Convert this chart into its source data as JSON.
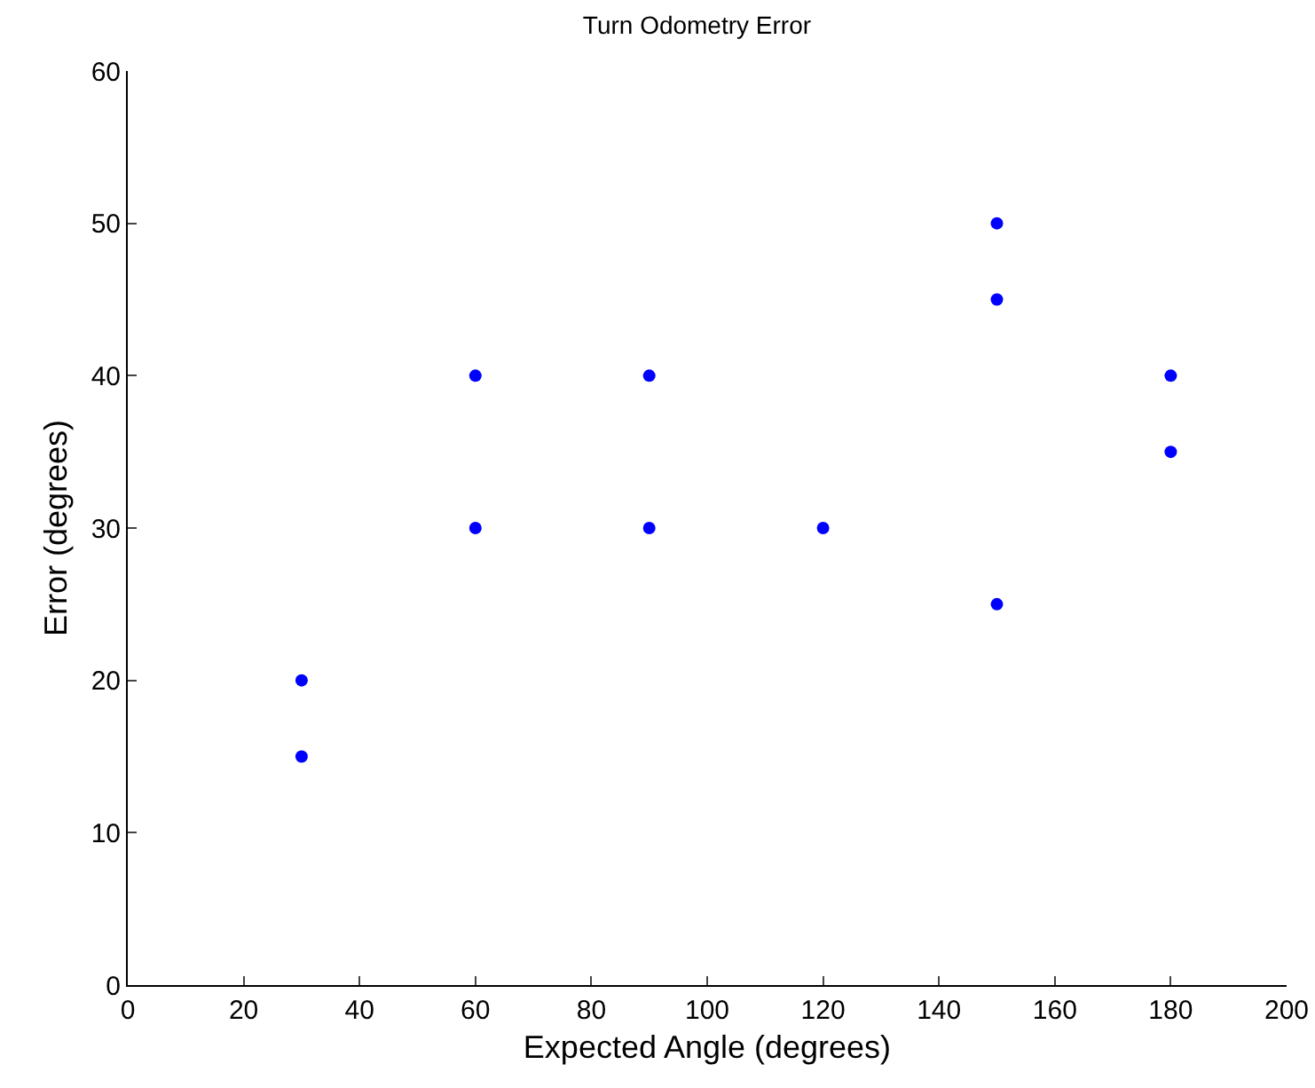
{
  "chart_data": {
    "type": "scatter",
    "title": "Turn Odometry Error",
    "xlabel": "Expected Angle (degrees)",
    "ylabel": "Error (degrees)",
    "x": [
      30,
      30,
      60,
      60,
      90,
      90,
      120,
      150,
      150,
      150,
      180,
      180
    ],
    "series": [
      {
        "color": "#0000ff",
        "values": [
          20,
          15,
          40,
          30,
          40,
          30,
          30,
          50,
          45,
          25,
          40,
          35
        ]
      }
    ],
    "xlim": [
      0,
      200
    ],
    "xticks": [
      0,
      20,
      40,
      60,
      80,
      100,
      120,
      140,
      160,
      180,
      200
    ],
    "ylim": [
      0,
      60
    ],
    "yticks": [
      0,
      10,
      20,
      30,
      40,
      50,
      60
    ],
    "grid": false,
    "marker": "circle"
  }
}
